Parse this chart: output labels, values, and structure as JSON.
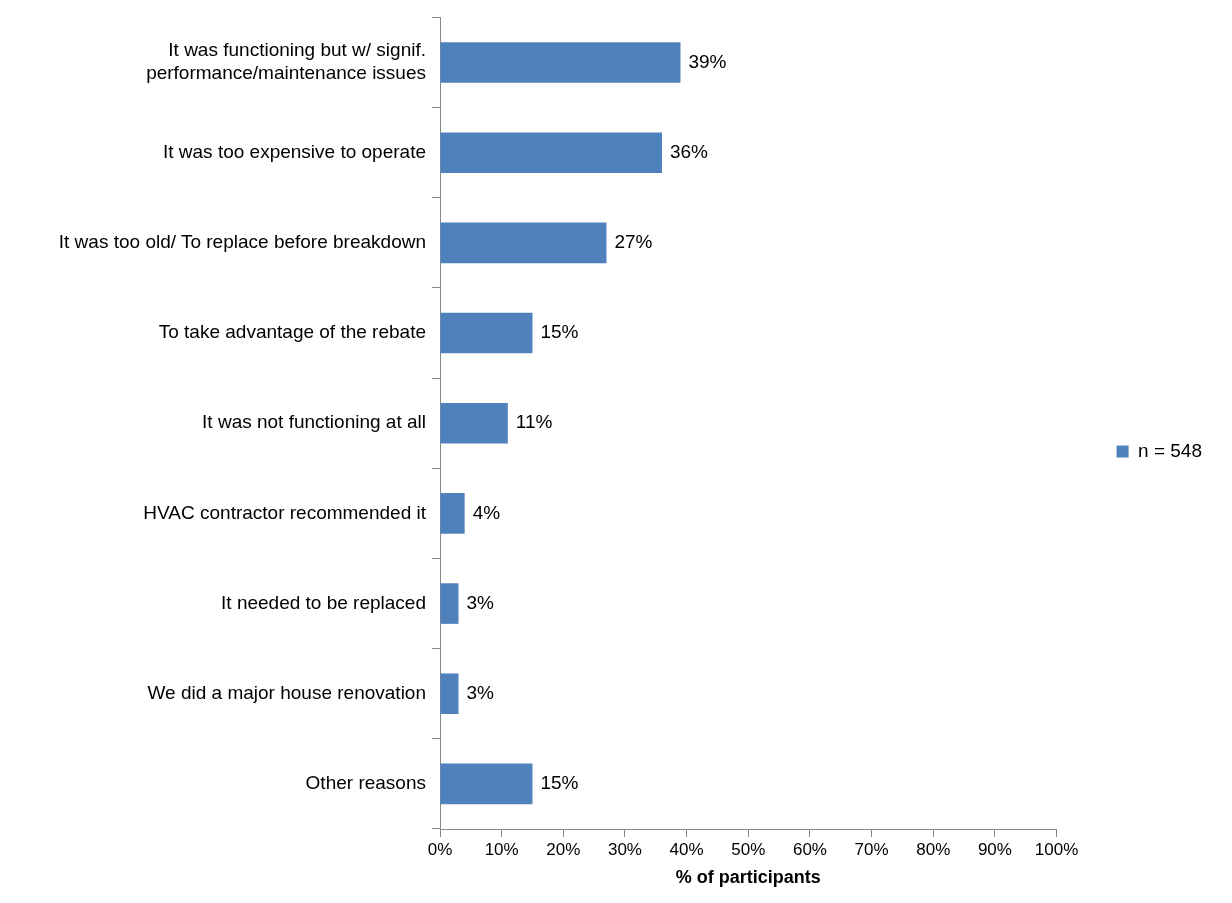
{
  "chart_data": {
    "type": "bar",
    "orientation": "horizontal",
    "xlabel": "% of participants",
    "categories": [
      "It was functioning but w/ signif. performance/maintenance issues",
      "It was too expensive to operate",
      "It was too old/ To replace before breakdown",
      "To take advantage of the rebate",
      "It was not functioning at all",
      "HVAC contractor recommended it",
      "It needed to be replaced",
      "We did a major house renovation",
      "Other reasons"
    ],
    "series": [
      {
        "name": "n = 548",
        "color": "#4f81bd",
        "values": [
          39,
          36,
          27,
          15,
          11,
          4,
          3,
          3,
          15
        ],
        "value_labels": [
          "39%",
          "36%",
          "27%",
          "15%",
          "11%",
          "4%",
          "3%",
          "3%",
          "15%"
        ]
      }
    ],
    "xlim": [
      0,
      100
    ],
    "xticks": [
      {
        "value": 0,
        "label": "0%"
      },
      {
        "value": 10,
        "label": "10%"
      },
      {
        "value": 20,
        "label": "20%"
      },
      {
        "value": 30,
        "label": "30%"
      },
      {
        "value": 40,
        "label": "40%"
      },
      {
        "value": 50,
        "label": "50%"
      },
      {
        "value": 60,
        "label": "60%"
      },
      {
        "value": 70,
        "label": "70%"
      },
      {
        "value": 80,
        "label": "80%"
      },
      {
        "value": 90,
        "label": "90%"
      },
      {
        "value": 100,
        "label": "100%"
      }
    ],
    "grid": false,
    "legend": "right"
  }
}
